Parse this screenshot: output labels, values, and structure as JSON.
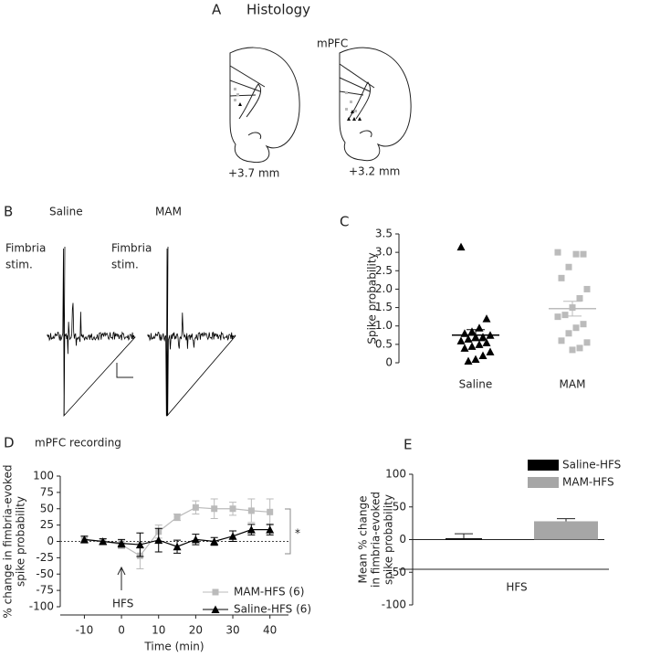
{
  "figure": {
    "panel_a": {
      "letter": "A",
      "title": "Histology",
      "region": "mPFC",
      "levels": [
        "+3.7 mm",
        "+3.2 mm"
      ]
    },
    "panel_b": {
      "letter": "B",
      "groups": [
        {
          "name": "Saline",
          "stim": [
            "Fimbria",
            "stim."
          ]
        },
        {
          "name": "MAM",
          "stim": [
            "Fimbria",
            "stim."
          ]
        }
      ]
    }
  },
  "chart_data": [
    {
      "type": "strip",
      "letter": "C",
      "ylabel": "Spike probability",
      "categories": [
        "Saline",
        "MAM"
      ],
      "groups": [
        {
          "marker": "triangle",
          "color": "#000000",
          "values": [
            3.15,
            1.2,
            0.95,
            0.85,
            0.8,
            0.75,
            0.7,
            0.7,
            0.65,
            0.6,
            0.55,
            0.5,
            0.45,
            0.4,
            0.3,
            0.2,
            0.1,
            0.05
          ],
          "mean": 0.75,
          "sem": 0.15
        },
        {
          "marker": "square",
          "color": "#bbbbbb",
          "values": [
            3.0,
            2.95,
            2.95,
            2.6,
            2.3,
            2.0,
            1.75,
            1.5,
            1.3,
            1.25,
            1.05,
            0.95,
            0.8,
            0.6,
            0.55,
            0.4,
            0.35
          ],
          "mean": 1.47,
          "sem": 0.2
        }
      ],
      "ylim": [
        0,
        3.5
      ],
      "yticks": [
        0,
        0.5,
        {
          "value": 1,
          "label": "1.0"
        },
        1.5,
        {
          "value": 2,
          "label": "2.0"
        },
        2.5,
        {
          "value": 3,
          "label": "3.0"
        },
        3.5
      ]
    },
    {
      "type": "line",
      "letter": "D",
      "title": "mPFC recording",
      "xlabel": "Time (min)",
      "ylabel": [
        "% change in fimbria-evoked",
        "spike probability"
      ],
      "x": [
        -10,
        -5,
        0,
        5,
        10,
        15,
        20,
        25,
        30,
        35,
        40
      ],
      "xlim": [
        -16.5,
        45
      ],
      "xticks": [
        -10,
        0,
        10,
        20,
        30,
        40
      ],
      "ylim": [
        -100,
        100
      ],
      "yticks": [
        -100,
        -75,
        -50,
        -25,
        0,
        25,
        50,
        75,
        100
      ],
      "hline": 0,
      "series": [
        {
          "name": "MAM-HFS (6)",
          "color": "#bbbbbb",
          "marker": "square",
          "values": [
            2,
            0,
            -5,
            -22,
            15,
            37,
            52,
            50,
            50,
            47,
            45
          ],
          "errors": [
            5,
            4,
            6,
            20,
            10,
            5,
            10,
            15,
            10,
            18,
            20
          ]
        },
        {
          "name": "Saline-HFS (6)",
          "color": "#000000",
          "marker": "triangle",
          "values": [
            3,
            0,
            -3,
            -5,
            2,
            -8,
            3,
            0,
            8,
            18,
            18
          ],
          "errors": [
            5,
            4,
            6,
            18,
            18,
            10,
            8,
            6,
            8,
            8,
            8
          ]
        }
      ],
      "annotations": [
        "HFS",
        "*"
      ],
      "legend": "lower right"
    },
    {
      "type": "bar",
      "letter": "E",
      "ylabel": [
        "Mean % change",
        "in fimbria-evoked",
        "spike probability"
      ],
      "categories": [
        "HFS"
      ],
      "series": [
        {
          "name": "Saline-HFS",
          "color": "#000000",
          "values": [
            2
          ],
          "errors": [
            7
          ]
        },
        {
          "name": "MAM-HFS",
          "color": "#a6a6a6",
          "values": [
            28
          ],
          "errors": [
            4
          ]
        }
      ],
      "ylim": [
        -100,
        100
      ],
      "yticks": [
        -100,
        -50,
        0,
        50,
        100
      ],
      "legend": "upper right"
    }
  ]
}
